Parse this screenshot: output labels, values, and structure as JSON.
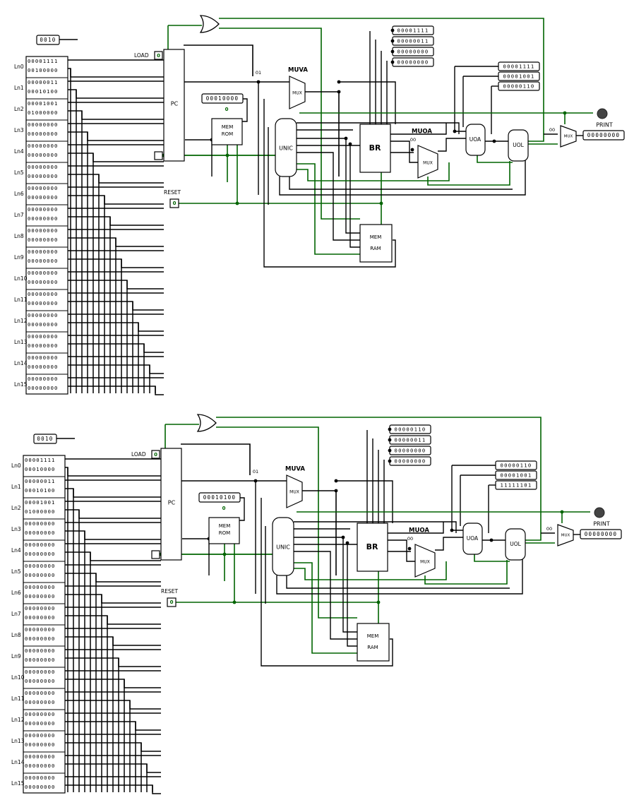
{
  "colors": {
    "wire_black": "#000000",
    "wire_dark_green": "#006400",
    "wire_bright_green": "#22cc22",
    "pin_blue": "#0000cc",
    "probe_dot": "#444444"
  },
  "circuits": [
    {
      "name_pc": "PC",
      "name_rom_line1": "MEM",
      "name_rom_line2": "ROM",
      "name_ram_line1": "MEM",
      "name_ram_line2": "RAM",
      "name_unic": "UNIC",
      "name_br": "BR",
      "name_uoa": "UOA",
      "name_uol": "UOL",
      "name_mux": "MUX",
      "label_muva": "MUVA",
      "label_muoa": "MUOA",
      "label_load": "LOAD",
      "label_reset": "RESET",
      "label_print": "PRINT",
      "pin_load": "0",
      "pin_reset": "0",
      "const_00_a": "00",
      "const_00_b": "00",
      "const_0": "0",
      "const_01": "01",
      "top_input": "0010",
      "rom_probe": "00010000",
      "print_value": "00000000",
      "br_regs": [
        "00001111",
        "00000011",
        "00000000",
        "00000000"
      ],
      "uo_regs": [
        "00001111",
        "00001001",
        "00000110"
      ],
      "rows": [
        {
          "label": "Ln0",
          "values": [
            "00001111",
            "00100000"
          ]
        },
        {
          "label": "Ln1",
          "values": [
            "00000011",
            "00010100"
          ]
        },
        {
          "label": "Ln2",
          "values": [
            "00001001",
            "01000000"
          ]
        },
        {
          "label": "Ln3",
          "values": [
            "00000000",
            "00000000"
          ]
        },
        {
          "label": "Ln4",
          "values": [
            "00000000",
            "00000000"
          ]
        },
        {
          "label": "Ln5",
          "values": [
            "00000000",
            "00000000"
          ]
        },
        {
          "label": "Ln6",
          "values": [
            "00000000",
            "00000000"
          ]
        },
        {
          "label": "Ln7",
          "values": [
            "00000000",
            "00000000"
          ]
        },
        {
          "label": "Ln8",
          "values": [
            "00000000",
            "00000000"
          ]
        },
        {
          "label": "Ln9",
          "values": [
            "00000000",
            "00000000"
          ]
        },
        {
          "label": "Ln10",
          "values": [
            "00000000",
            "00000000"
          ]
        },
        {
          "label": "Ln11",
          "values": [
            "00000000",
            "00000000"
          ]
        },
        {
          "label": "Ln12",
          "values": [
            "00000000",
            "00000000"
          ]
        },
        {
          "label": "Ln13",
          "values": [
            "00000000",
            "00000000"
          ]
        },
        {
          "label": "Ln14",
          "values": [
            "00000000",
            "00000000"
          ]
        },
        {
          "label": "Ln15",
          "values": [
            "00000000",
            "00000000"
          ]
        }
      ]
    },
    {
      "name_pc": "PC",
      "name_rom_line1": "MEM",
      "name_rom_line2": "ROM",
      "name_ram_line1": "MEM",
      "name_ram_line2": "RAM",
      "name_unic": "UNIC",
      "name_br": "BR",
      "name_uoa": "UOA",
      "name_uol": "UOL",
      "name_mux": "MUX",
      "label_muva": "MUVA",
      "label_muoa": "MUOA",
      "label_load": "LOAD",
      "label_reset": "RESET",
      "label_print": "PRINT",
      "pin_load": "0",
      "pin_reset": "0",
      "const_00_a": "00",
      "const_00_b": "00",
      "const_0": "0",
      "const_01": "01",
      "top_input": "0010",
      "rom_probe": "00010100",
      "print_value": "00000000",
      "br_regs": [
        "00000110",
        "00000011",
        "00000000",
        "00000000"
      ],
      "uo_regs": [
        "00000110",
        "00001001",
        "11111101"
      ],
      "rows": [
        {
          "label": "Ln0",
          "values": [
            "00001111",
            "00010000"
          ]
        },
        {
          "label": "Ln1",
          "values": [
            "00000011",
            "00010100"
          ]
        },
        {
          "label": "Ln2",
          "values": [
            "00001001",
            "01000000"
          ]
        },
        {
          "label": "Ln3",
          "values": [
            "00000000",
            "00000000"
          ]
        },
        {
          "label": "Ln4",
          "values": [
            "00000000",
            "00000000"
          ]
        },
        {
          "label": "Ln5",
          "values": [
            "00000000",
            "00000000"
          ]
        },
        {
          "label": "Ln6",
          "values": [
            "00000000",
            "00000000"
          ]
        },
        {
          "label": "Ln7",
          "values": [
            "00000000",
            "00000000"
          ]
        },
        {
          "label": "Ln8",
          "values": [
            "00000000",
            "00000000"
          ]
        },
        {
          "label": "Ln9",
          "values": [
            "00000000",
            "00000000"
          ]
        },
        {
          "label": "Ln10",
          "values": [
            "00000000",
            "00000000"
          ]
        },
        {
          "label": "Ln11",
          "values": [
            "00000000",
            "00000000"
          ]
        },
        {
          "label": "Ln12",
          "values": [
            "00000000",
            "00000000"
          ]
        },
        {
          "label": "Ln13",
          "values": [
            "00000000",
            "00000000"
          ]
        },
        {
          "label": "Ln14",
          "values": [
            "00000000",
            "00000000"
          ]
        },
        {
          "label": "Ln15",
          "values": [
            "00000000",
            "00000000"
          ]
        }
      ]
    }
  ]
}
